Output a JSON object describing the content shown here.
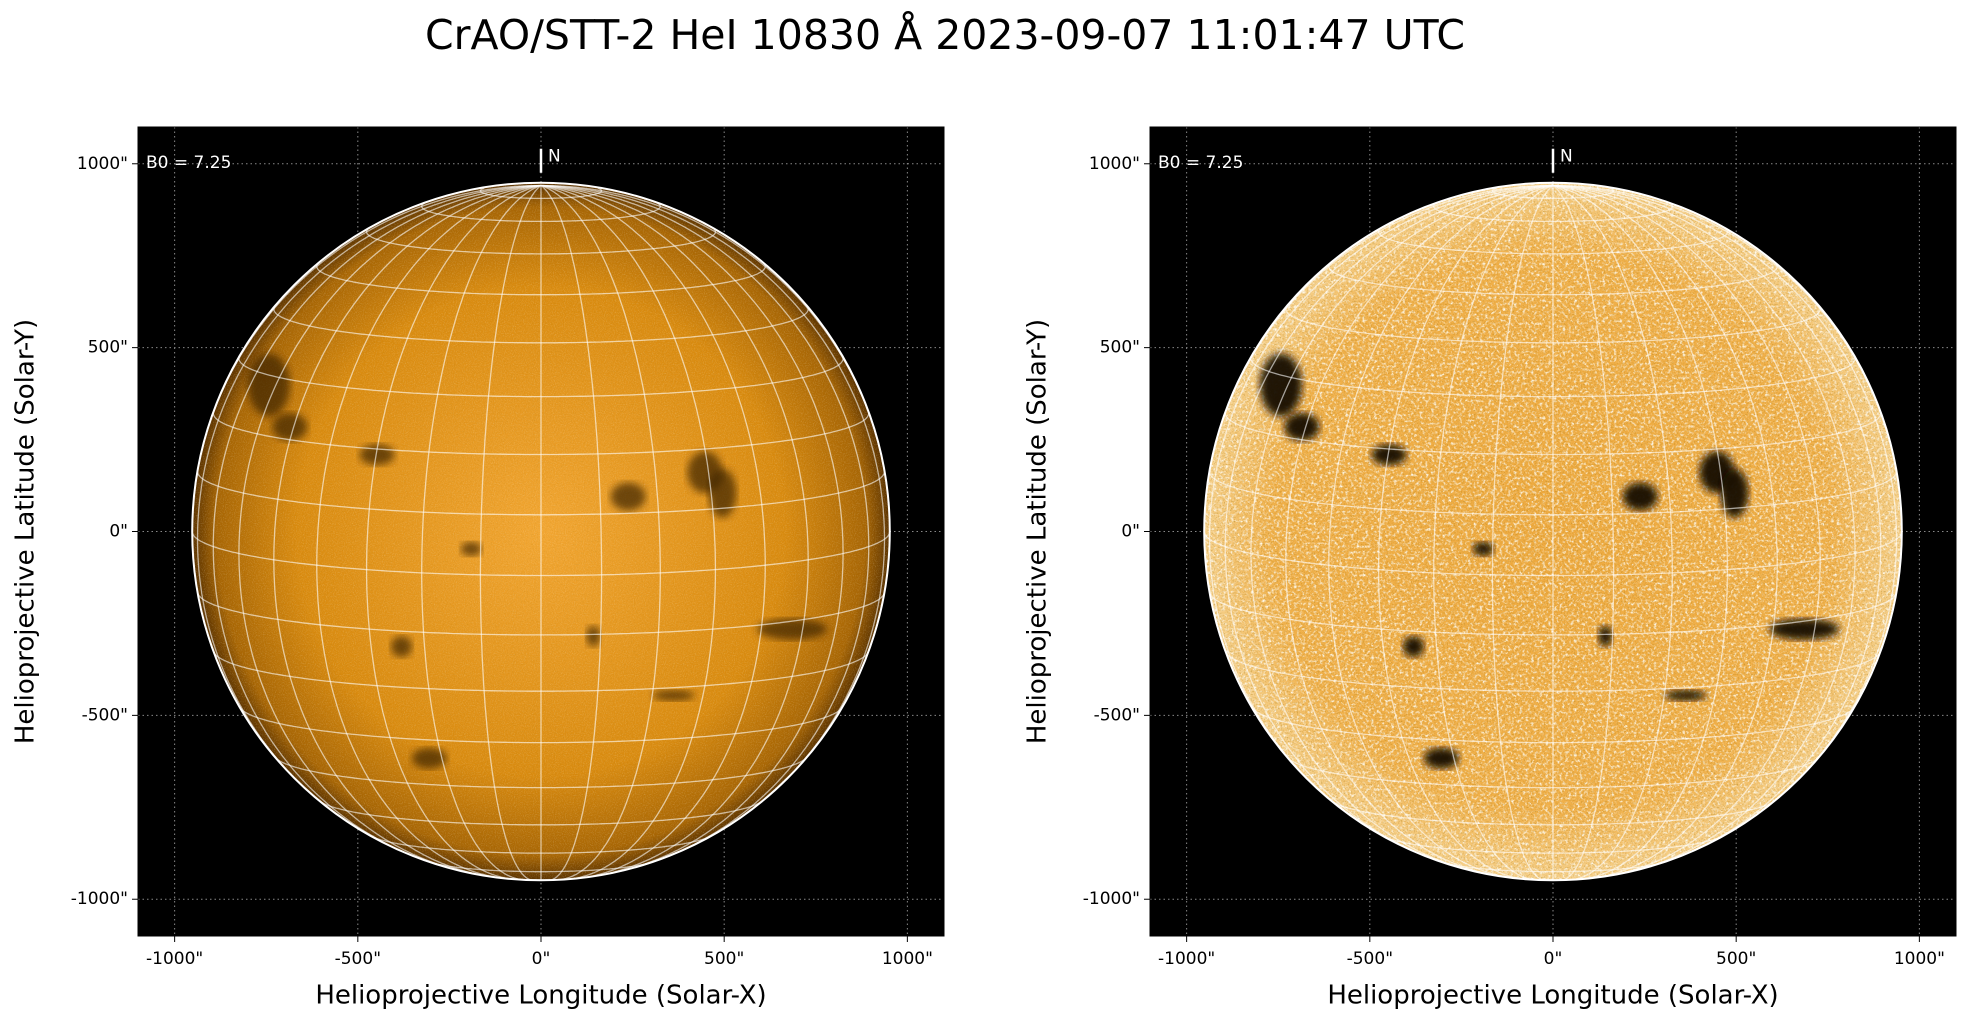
{
  "title": "CrAO/STT-2 HeI 10830 Å 2023-09-07 11:01:47 UTC",
  "chart_data": [
    {
      "type": "solar-image",
      "xlabel": "Helioprojective Longitude (Solar-X)",
      "ylabel": "Helioprojective Latitude (Solar-Y)",
      "annotation": "B0 = 7.25",
      "north_label": "N",
      "b0": 7.25,
      "solar_radius": 952,
      "xlim": [
        -1100,
        1100
      ],
      "ylim": [
        -1100,
        1100
      ],
      "xticks": [
        {
          "value": -1000,
          "label": "-1000\""
        },
        {
          "value": -500,
          "label": "-500\""
        },
        {
          "value": 0,
          "label": "0\""
        },
        {
          "value": 500,
          "label": "500\""
        },
        {
          "value": 1000,
          "label": "1000\""
        }
      ],
      "yticks": [
        {
          "value": -1000,
          "label": "-1000\""
        },
        {
          "value": -500,
          "label": "-500\""
        },
        {
          "value": 0,
          "label": "0\""
        },
        {
          "value": 500,
          "label": "500\""
        },
        {
          "value": 1000,
          "label": "1000\""
        }
      ],
      "grid": true,
      "contrast": "normal"
    },
    {
      "type": "solar-image",
      "xlabel": "Helioprojective Longitude (Solar-X)",
      "ylabel": "Helioprojective Latitude (Solar-Y)",
      "annotation": "B0 = 7.25",
      "north_label": "N",
      "b0": 7.25,
      "solar_radius": 952,
      "xlim": [
        -1100,
        1100
      ],
      "ylim": [
        -1100,
        1100
      ],
      "xticks": [
        {
          "value": -1000,
          "label": "-1000\""
        },
        {
          "value": -500,
          "label": "-500\""
        },
        {
          "value": 0,
          "label": "0\""
        },
        {
          "value": 500,
          "label": "500\""
        },
        {
          "value": 1000,
          "label": "1000\""
        }
      ],
      "yticks": [
        {
          "value": -1000,
          "label": "-1000\""
        },
        {
          "value": -500,
          "label": "-500\""
        },
        {
          "value": 0,
          "label": "0\""
        },
        {
          "value": 500,
          "label": "500\""
        },
        {
          "value": 1000,
          "label": "1000\""
        }
      ],
      "grid": true,
      "contrast": "high"
    }
  ]
}
